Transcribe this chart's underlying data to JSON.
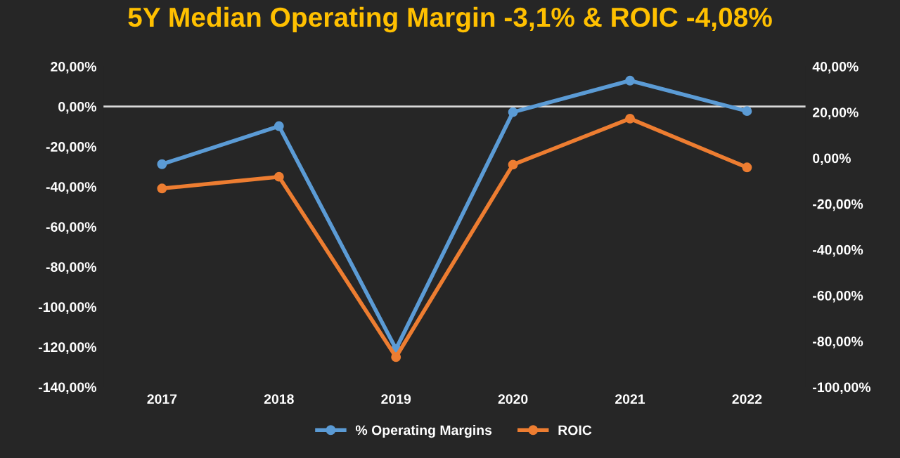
{
  "chart_data": {
    "type": "line",
    "title": "5Y Median Operating Margin -3,1% & ROIC -4,08%",
    "categories": [
      "2017",
      "2018",
      "2019",
      "2020",
      "2021",
      "2022"
    ],
    "series": [
      {
        "name": "% Operating Margins",
        "color": "#5b9bd5",
        "values": [
          -28.8,
          -9.8,
          -121,
          -2.8,
          12.9,
          -2.3
        ]
      },
      {
        "name": "ROIC",
        "color": "#ed7d31",
        "axis": "y2",
        "values": [
          -13.3,
          -8.2,
          -86.9,
          -2.9,
          17.2,
          -4.1
        ]
      }
    ],
    "ylim": [
      -140,
      20
    ],
    "yticks": [
      {
        "value": 20,
        "label": "20,00%"
      },
      {
        "value": 0,
        "label": "0,00%"
      },
      {
        "value": -20,
        "label": "-20,00%"
      },
      {
        "value": -40,
        "label": "-40,00%"
      },
      {
        "value": -60,
        "label": "-60,00%"
      },
      {
        "value": -80,
        "label": "-80,00%"
      },
      {
        "value": -100,
        "label": "-100,00%"
      },
      {
        "value": -120,
        "label": "-120,00%"
      },
      {
        "value": -140,
        "label": "-140,00%"
      }
    ],
    "y2lim": [
      -100,
      40
    ],
    "y2ticks": [
      {
        "value": 40,
        "label": "40,00%"
      },
      {
        "value": 20,
        "label": "20,00%"
      },
      {
        "value": 0,
        "label": "0,00%"
      },
      {
        "value": -20,
        "label": "-20,00%"
      },
      {
        "value": -40,
        "label": "-40,00%"
      },
      {
        "value": -60,
        "label": "-60,00%"
      },
      {
        "value": -80,
        "label": "-80,00%"
      },
      {
        "value": -100,
        "label": "-100,00%"
      }
    ],
    "ref_lines": [
      {
        "axis": "y",
        "value": 0,
        "color": "#d9d9d9",
        "line_style": "solid"
      }
    ],
    "marker": "circle",
    "line_style": "solid",
    "legend": "bottom",
    "grid": false
  }
}
